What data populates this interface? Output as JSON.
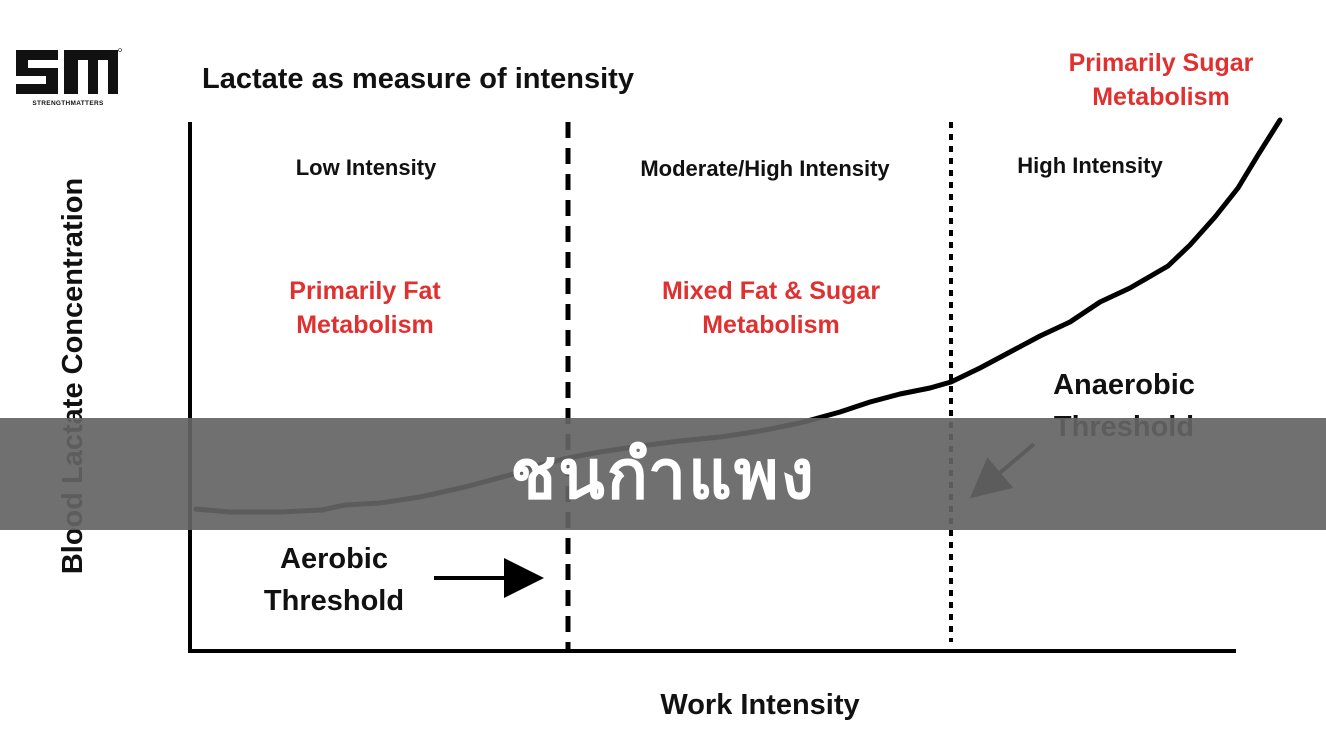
{
  "logo": {
    "name": "strengthmatters-logo",
    "text": "STRENGTHMATTERS"
  },
  "chart_data": {
    "type": "line",
    "title": "Lactate as measure of intensity",
    "xlabel": "Work Intensity",
    "ylabel": "Blood Lactate Concentration",
    "zones": [
      {
        "label": "Low Intensity",
        "metabolism": [
          "Primarily Fat",
          "Metabolism"
        ]
      },
      {
        "label": "Moderate/High Intensity",
        "metabolism": [
          "Mixed Fat & Sugar",
          "Metabolism"
        ]
      },
      {
        "label": "High Intensity",
        "metabolism": [
          "Primarily Sugar",
          "Metabolism"
        ]
      }
    ],
    "thresholds": [
      {
        "name": [
          "Aerobic",
          "Threshold"
        ],
        "line_style": "dashed"
      },
      {
        "name": [
          "Anaerobic",
          "Threshold"
        ],
        "line_style": "dotted"
      }
    ],
    "metabolism_color": "#e03030",
    "curve_color": "#000000"
  },
  "banner": {
    "text": "ชนกำแพง",
    "background": "#646464"
  }
}
